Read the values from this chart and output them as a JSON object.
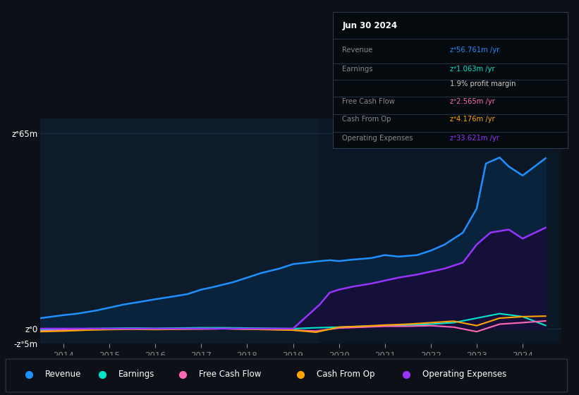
{
  "bg_color": "#0d1117",
  "plot_bg_color": "#0d1b2a",
  "grid_color": "#1e3050",
  "title_date": "Jun 30 2024",
  "ylim": [
    -5,
    70
  ],
  "xlim_start": 2013.5,
  "xlim_end": 2024.85,
  "xticks": [
    2014,
    2015,
    2016,
    2017,
    2018,
    2019,
    2020,
    2021,
    2022,
    2023,
    2024
  ],
  "shade_start_x": 2019.58,
  "colors": {
    "Revenue": "#1e90ff",
    "Earnings": "#00e5cc",
    "Free Cash Flow": "#ff69b4",
    "Cash From Op": "#ffa500",
    "Operating Expenses": "#9933ff"
  },
  "revenue_x": [
    2013.5,
    2014.0,
    2014.3,
    2014.7,
    2015.0,
    2015.3,
    2015.7,
    2016.0,
    2016.3,
    2016.7,
    2017.0,
    2017.3,
    2017.7,
    2018.0,
    2018.3,
    2018.7,
    2019.0,
    2019.3,
    2019.58,
    2019.8,
    2020.0,
    2020.3,
    2020.7,
    2021.0,
    2021.3,
    2021.7,
    2022.0,
    2022.3,
    2022.7,
    2023.0,
    2023.2,
    2023.5,
    2023.7,
    2024.0,
    2024.5
  ],
  "revenue_y": [
    3.5,
    4.5,
    5.0,
    6.0,
    7.0,
    8.0,
    9.0,
    9.8,
    10.5,
    11.5,
    13.0,
    14.0,
    15.5,
    17.0,
    18.5,
    20.0,
    21.5,
    22.0,
    22.5,
    22.8,
    22.5,
    23.0,
    23.5,
    24.5,
    24.0,
    24.5,
    26.0,
    28.0,
    32.0,
    40.0,
    55.0,
    57.0,
    54.0,
    51.0,
    56.761
  ],
  "earnings_x": [
    2013.5,
    2014.0,
    2014.5,
    2015.0,
    2015.5,
    2016.0,
    2016.5,
    2017.0,
    2017.5,
    2018.0,
    2018.5,
    2019.0,
    2019.5,
    2020.0,
    2020.5,
    2021.0,
    2021.5,
    2022.0,
    2022.5,
    2023.0,
    2023.5,
    2024.0,
    2024.5
  ],
  "earnings_y": [
    -0.5,
    -0.3,
    0.0,
    0.1,
    0.2,
    0.1,
    0.2,
    0.3,
    0.3,
    0.2,
    0.1,
    0.0,
    0.3,
    0.5,
    0.8,
    1.0,
    1.2,
    1.5,
    2.0,
    3.5,
    5.0,
    4.0,
    1.063
  ],
  "fcf_x": [
    2013.5,
    2014.0,
    2014.5,
    2015.0,
    2015.5,
    2016.0,
    2016.5,
    2017.0,
    2017.5,
    2018.0,
    2018.5,
    2019.0,
    2019.5,
    2020.0,
    2020.5,
    2021.0,
    2021.5,
    2022.0,
    2022.5,
    2023.0,
    2023.5,
    2024.0,
    2024.5
  ],
  "fcf_y": [
    -0.8,
    -0.5,
    -0.3,
    -0.2,
    -0.1,
    -0.2,
    -0.1,
    -0.1,
    0.0,
    -0.2,
    -0.3,
    -0.5,
    -0.8,
    0.2,
    0.5,
    0.8,
    0.8,
    1.0,
    0.5,
    -1.0,
    1.5,
    2.0,
    2.565
  ],
  "cashop_x": [
    2013.5,
    2014.0,
    2014.5,
    2015.0,
    2015.5,
    2016.0,
    2016.5,
    2017.0,
    2017.5,
    2018.0,
    2018.5,
    2019.0,
    2019.5,
    2020.0,
    2020.5,
    2021.0,
    2021.5,
    2022.0,
    2022.5,
    2023.0,
    2023.5,
    2024.0,
    2024.5
  ],
  "cashop_y": [
    -1.0,
    -0.8,
    -0.5,
    -0.3,
    -0.2,
    -0.3,
    -0.2,
    -0.1,
    0.0,
    -0.2,
    -0.3,
    -0.5,
    -1.2,
    0.5,
    0.8,
    1.2,
    1.5,
    2.0,
    2.5,
    1.0,
    3.5,
    4.0,
    4.176
  ],
  "opex_x": [
    2013.5,
    2014.0,
    2014.5,
    2015.0,
    2015.5,
    2016.0,
    2016.5,
    2017.0,
    2017.5,
    2018.0,
    2018.5,
    2019.0,
    2019.58,
    2019.8,
    2020.0,
    2020.3,
    2020.7,
    2021.0,
    2021.3,
    2021.7,
    2022.0,
    2022.3,
    2022.7,
    2023.0,
    2023.3,
    2023.7,
    2024.0,
    2024.5
  ],
  "opex_y": [
    0.0,
    0.0,
    0.0,
    0.0,
    0.0,
    0.0,
    0.0,
    0.0,
    0.0,
    0.0,
    0.0,
    0.0,
    8.0,
    12.0,
    13.0,
    14.0,
    15.0,
    16.0,
    17.0,
    18.0,
    19.0,
    20.0,
    22.0,
    28.0,
    32.0,
    33.0,
    30.0,
    33.621
  ],
  "legend": [
    {
      "label": "Revenue",
      "color": "#1e90ff"
    },
    {
      "label": "Earnings",
      "color": "#00e5cc"
    },
    {
      "label": "Free Cash Flow",
      "color": "#ff69b4"
    },
    {
      "label": "Cash From Op",
      "color": "#ffa500"
    },
    {
      "label": "Operating Expenses",
      "color": "#9933ff"
    }
  ],
  "tooltip_date": "Jun 30 2024",
  "tooltip_rows": [
    {
      "label": "Revenue",
      "value": "zᐤ56.761m /yr",
      "color": "#1e90ff"
    },
    {
      "label": "Earnings",
      "value": "zᐤ1.063m /yr",
      "color": "#00e5cc"
    },
    {
      "label": "",
      "value": "1.9% profit margin",
      "color": "#cccccc"
    },
    {
      "label": "Free Cash Flow",
      "value": "zᐤ2.565m /yr",
      "color": "#ff69b4"
    },
    {
      "label": "Cash From Op",
      "value": "zᐤ4.176m /yr",
      "color": "#ffa500"
    },
    {
      "label": "Operating Expenses",
      "value": "zᐤ33.621m /yr",
      "color": "#9933ff"
    }
  ]
}
